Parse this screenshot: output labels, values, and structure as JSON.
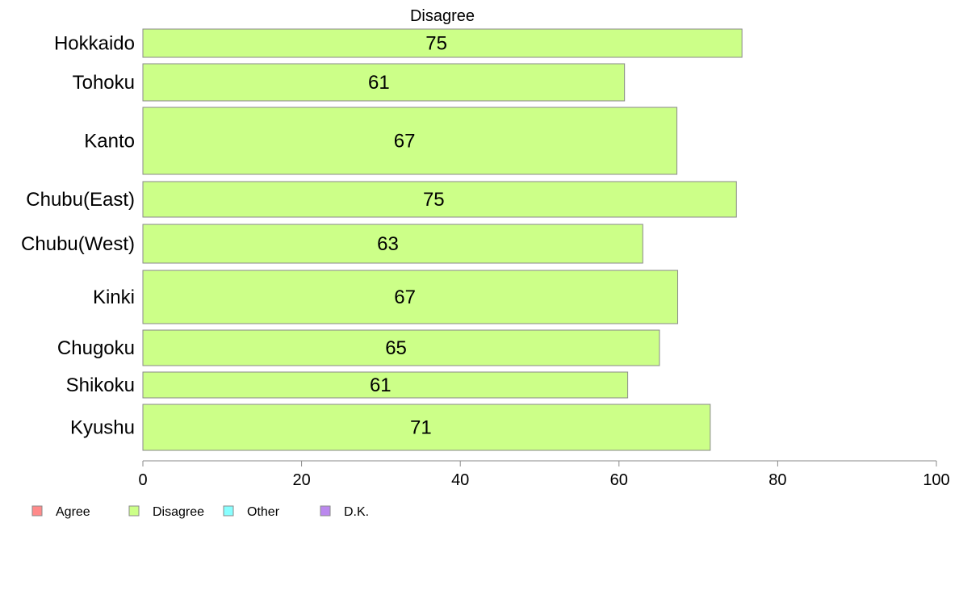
{
  "chart_data": {
    "type": "bar",
    "orientation": "horizontal",
    "title": "Disagree",
    "categories": [
      "Hokkaido",
      "Tohoku",
      "Kanto",
      "Chubu(East)",
      "Chubu(West)",
      "Kinki",
      "Chugoku",
      "Shikoku",
      "Kyushu"
    ],
    "series": [
      {
        "name": "Disagree",
        "values": [
          75.5,
          60.7,
          67.3,
          74.8,
          63.0,
          67.4,
          65.1,
          61.1,
          71.5
        ],
        "color": "#ccff88"
      }
    ],
    "value_labels": [
      "75",
      "61",
      "67",
      "75",
      "63",
      "67",
      "65",
      "61",
      "71"
    ],
    "xlim": [
      0,
      100
    ],
    "x_ticks": [
      0,
      20,
      40,
      60,
      80,
      100
    ],
    "x_tick_labels": [
      "0",
      "20",
      "40",
      "60",
      "80",
      "100"
    ],
    "grid": false,
    "legend_position": "bottom-left",
    "legend": [
      {
        "label": "Agree",
        "color": "#ff8a8a"
      },
      {
        "label": "Disagree",
        "color": "#ccff88"
      },
      {
        "label": "Other",
        "color": "#88ffff"
      },
      {
        "label": "D.K.",
        "color": "#bb88ee"
      }
    ]
  }
}
